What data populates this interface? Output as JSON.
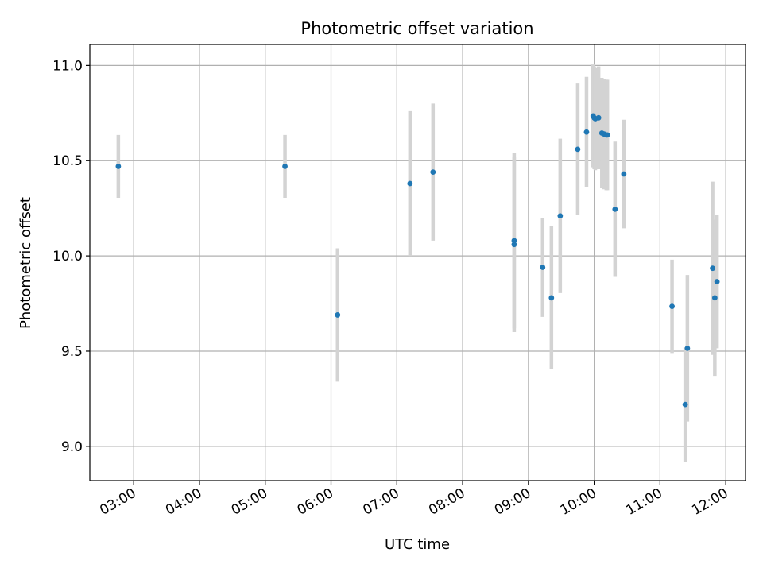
{
  "chart_data": {
    "type": "scatter",
    "title": "Photometric offset variation",
    "xlabel": "UTC time",
    "ylabel": "Photometric offset",
    "x_tick_labels": [
      "03:00",
      "04:00",
      "05:00",
      "06:00",
      "07:00",
      "08:00",
      "09:00",
      "10:00",
      "11:00",
      "12:00"
    ],
    "y_tick_labels": [
      "9.0",
      "9.5",
      "10.0",
      "10.5",
      "11.0"
    ],
    "x_ticks": [
      "03:00",
      "04:00",
      "05:00",
      "06:00",
      "07:00",
      "08:00",
      "09:00",
      "10:00",
      "11:00",
      "12:00"
    ],
    "y_ticks": [
      9.0,
      9.5,
      10.0,
      10.5,
      11.0
    ],
    "xlim": [
      "02:20",
      "12:18"
    ],
    "ylim": [
      8.82,
      11.11
    ],
    "grid": true,
    "points": [
      {
        "x": "02:46",
        "y": 10.47,
        "err": 0.165
      },
      {
        "x": "05:18",
        "y": 10.47,
        "err": 0.165
      },
      {
        "x": "06:06",
        "y": 9.69,
        "err": 0.35
      },
      {
        "x": "07:12",
        "y": 10.38,
        "err": 0.38
      },
      {
        "x": "07:33",
        "y": 10.44,
        "err": 0.36
      },
      {
        "x": "08:47",
        "y": 10.08,
        "err": 0.46
      },
      {
        "x": "08:47",
        "y": 10.06,
        "err": 0.46
      },
      {
        "x": "09:13",
        "y": 9.94,
        "err": 0.26
      },
      {
        "x": "09:21",
        "y": 9.78,
        "err": 0.375
      },
      {
        "x": "09:29",
        "y": 10.21,
        "err": 0.405
      },
      {
        "x": "09:45",
        "y": 10.56,
        "err": 0.345
      },
      {
        "x": "09:53",
        "y": 10.65,
        "err": 0.29
      },
      {
        "x": "09:59",
        "y": 10.735,
        "err": 0.27
      },
      {
        "x": "10:00",
        "y": 10.725,
        "err": 0.27
      },
      {
        "x": "10:01",
        "y": 10.72,
        "err": 0.27
      },
      {
        "x": "10:04",
        "y": 10.725,
        "err": 0.27
      },
      {
        "x": "10:07",
        "y": 10.645,
        "err": 0.29
      },
      {
        "x": "10:09",
        "y": 10.64,
        "err": 0.29
      },
      {
        "x": "10:11",
        "y": 10.635,
        "err": 0.29
      },
      {
        "x": "10:12",
        "y": 10.635,
        "err": 0.29
      },
      {
        "x": "10:19",
        "y": 10.245,
        "err": 0.355
      },
      {
        "x": "10:27",
        "y": 10.43,
        "err": 0.285
      },
      {
        "x": "11:11",
        "y": 9.735,
        "err": 0.245
      },
      {
        "x": "11:23",
        "y": 9.22,
        "err": 0.3
      },
      {
        "x": "11:25",
        "y": 9.515,
        "err": 0.385
      },
      {
        "x": "11:48",
        "y": 9.935,
        "err": 0.455
      },
      {
        "x": "11:50",
        "y": 9.78,
        "err": 0.41
      },
      {
        "x": "11:52",
        "y": 9.865,
        "err": 0.35
      }
    ],
    "colors": {
      "marker": "#1f77b4",
      "errorbar": "#d3d3d3",
      "grid": "#b0b0b0",
      "axes": "#000000"
    }
  }
}
